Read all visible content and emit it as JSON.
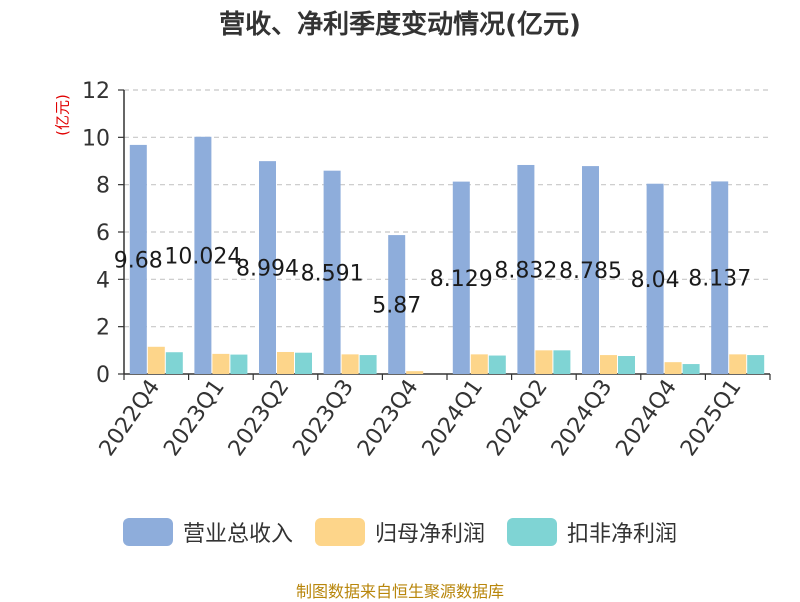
{
  "title": "营收、净利季度变动情况(亿元)",
  "unit_label": "(亿元)",
  "source": "制图数据来自恒生聚源数据库",
  "colors": {
    "revenue": "#8eaddb",
    "net_profit": "#fdd58a",
    "deducted_net_profit": "#7fd4d4",
    "unit_label": "#e00000",
    "source": "#b8860b"
  },
  "chart_data": {
    "type": "bar",
    "title": "营收、净利季度变动情况(亿元)",
    "ylabel": "(亿元)",
    "ylim": [
      0,
      12
    ],
    "yticks": [
      0,
      2,
      4,
      6,
      8,
      10,
      12
    ],
    "grid": true,
    "legend_position": "bottom",
    "categories": [
      "2022Q4",
      "2023Q1",
      "2023Q2",
      "2023Q3",
      "2023Q4",
      "2024Q1",
      "2024Q2",
      "2024Q3",
      "2024Q4",
      "2025Q1"
    ],
    "series": [
      {
        "name": "营业总收入",
        "color": "#8eaddb",
        "values": [
          9.68,
          10.024,
          8.994,
          8.591,
          5.87,
          8.129,
          8.832,
          8.785,
          8.04,
          8.137
        ],
        "labels": [
          "9.68",
          "10.024",
          "8.994",
          "8.591",
          "5.87",
          "8.129",
          "8.832",
          "8.785",
          "8.04",
          "8.137"
        ]
      },
      {
        "name": "归母净利润",
        "color": "#fdd58a",
        "values": [
          1.15,
          0.85,
          0.93,
          0.83,
          0.12,
          0.83,
          1.0,
          0.8,
          0.5,
          0.83
        ]
      },
      {
        "name": "扣非净利润",
        "color": "#7fd4d4",
        "values": [
          0.92,
          0.82,
          0.9,
          0.8,
          0.0,
          0.78,
          1.0,
          0.76,
          0.42,
          0.8
        ]
      }
    ]
  }
}
